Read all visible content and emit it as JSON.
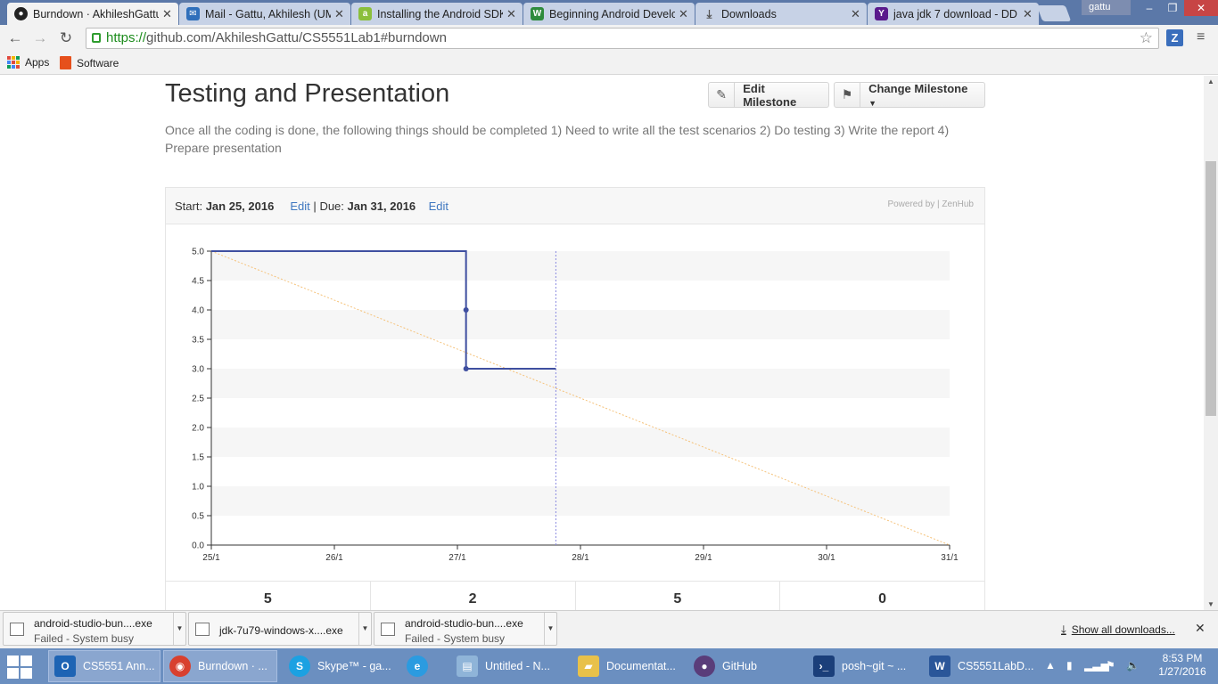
{
  "browser": {
    "tabs": [
      {
        "label": "Burndown · AkhileshGattu",
        "icon": "github-icon",
        "color": "#222222",
        "active": true
      },
      {
        "label": "Mail - Gattu, Akhilesh (UM",
        "icon": "mail-icon",
        "color": "#2f6fbb",
        "active": false
      },
      {
        "label": "Installing the Android SDK",
        "icon": "android-icon",
        "color": "#8bbf3c",
        "active": false
      },
      {
        "label": "Beginning Android Develo",
        "icon": "bookmark-icon",
        "color": "#2e8b3c",
        "active": false
      },
      {
        "label": "Downloads",
        "icon": "download-icon",
        "color": "#555555",
        "active": false
      },
      {
        "label": "java jdk 7 download - DD",
        "icon": "yahoo-icon",
        "color": "#5a1a8c",
        "active": false
      }
    ],
    "user": "gattu",
    "url_scheme": "https://",
    "url_rest": "github.com/AkhileshGattu/CS5551Lab1#burndown",
    "bookmarks": [
      {
        "label": "Apps"
      },
      {
        "label": "Software"
      }
    ]
  },
  "milestone": {
    "title": "Testing and Presentation",
    "edit_label": "Edit Milestone",
    "change_label": "Change Milestone",
    "description": "Once all the coding is done, the following things should be completed 1) Need to write all the test scenarios 2) Do testing 3) Write the report 4) Prepare presentation",
    "start_label": "Start:",
    "start_date": "Jan 25, 2016",
    "edit_link": "Edit",
    "separator": "|",
    "due_label": "Due:",
    "due_date": "Jan 31, 2016",
    "powered_by": "Powered by | ZenHub",
    "stats": [
      "5",
      "2",
      "5",
      "0"
    ]
  },
  "chart_data": {
    "type": "line",
    "x_ticks": [
      "25/1",
      "26/1",
      "27/1",
      "28/1",
      "29/1",
      "30/1",
      "31/1"
    ],
    "y_ticks": [
      "0.0",
      "0.5",
      "1.0",
      "1.5",
      "2.0",
      "2.5",
      "3.0",
      "3.5",
      "4.0",
      "4.5",
      "5.0"
    ],
    "xlim": [
      0,
      6
    ],
    "ylim": [
      0,
      5
    ],
    "grid": "alternating horizontal bands",
    "series": [
      {
        "style": "step",
        "color": "#3f4fa0",
        "points": [
          [
            0,
            5
          ],
          [
            2.07,
            5
          ],
          [
            2.07,
            4
          ],
          [
            2.07,
            3
          ],
          [
            2.8,
            3
          ]
        ],
        "markers": [
          [
            2.07,
            4
          ],
          [
            2.07,
            3
          ]
        ]
      },
      {
        "style": "dotted ideal",
        "color": "#f5c27a",
        "points": [
          [
            0,
            5
          ],
          [
            6,
            0
          ]
        ]
      }
    ],
    "today_marker": {
      "x": 2.8,
      "color": "#8b8be0"
    }
  },
  "downloads": {
    "items": [
      {
        "name": "android-studio-bun....exe",
        "status": "Failed - System busy"
      },
      {
        "name": "jdk-7u79-windows-x....exe",
        "status": ""
      },
      {
        "name": "android-studio-bun....exe",
        "status": "Failed - System busy"
      }
    ],
    "show_all": "Show all downloads..."
  },
  "taskbar": {
    "items": [
      {
        "label": "CS5551 Ann...",
        "icon": "outlook-icon",
        "color": "#1e64b4"
      },
      {
        "label": "Burndown · ...",
        "icon": "chrome-icon",
        "color": "#d8402f"
      },
      {
        "label": "Skype™ - ga...",
        "icon": "skype-icon",
        "color": "#1ba1e2"
      },
      {
        "label": "",
        "icon": "ie-icon",
        "color": "#2b9be0"
      },
      {
        "label": "Untitled - N...",
        "icon": "notepad-icon",
        "color": "#8fb4d8"
      },
      {
        "label": "Documentat...",
        "icon": "folder-icon",
        "color": "#e8c14a"
      },
      {
        "label": "GitHub",
        "icon": "github-desktop-icon",
        "color": "#5a3d7a"
      },
      {
        "label": "posh~git ~ ...",
        "icon": "powershell-icon",
        "color": "#1b3f7a"
      },
      {
        "label": "CS5551LabD...",
        "icon": "word-icon",
        "color": "#2a5699"
      }
    ],
    "time": "8:53 PM",
    "date": "1/27/2016"
  }
}
